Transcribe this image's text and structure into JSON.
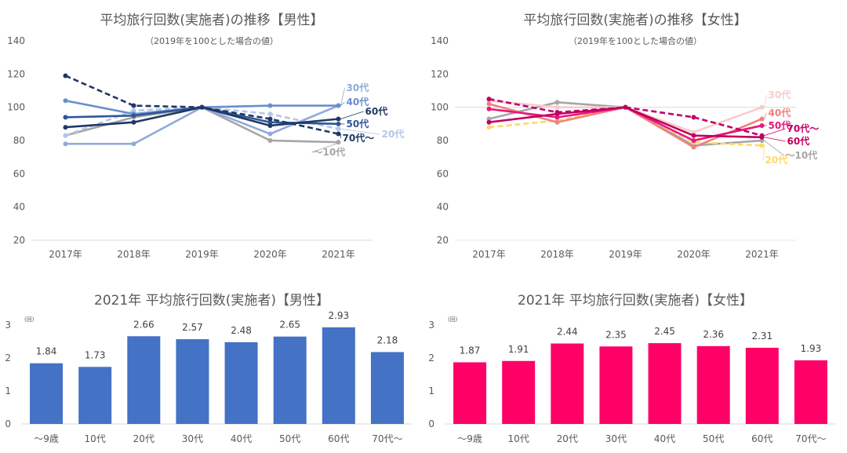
{
  "chart_data": [
    {
      "type": "line",
      "title": "平均旅行回数(実施者)の推移【男性】",
      "subtitle": "（2019年を100とした場合の値）",
      "categories": [
        "2017年",
        "2018年",
        "2019年",
        "2020年",
        "2021年"
      ],
      "ylim": [
        20,
        140
      ],
      "yticks": [
        20,
        40,
        60,
        80,
        100,
        120,
        140
      ],
      "grid": "baseline-only",
      "series": [
        {
          "name": "～10代",
          "values": [
            83,
            94,
            100,
            80,
            79
          ],
          "color": "#a6a6a6",
          "dashed": false
        },
        {
          "name": "20代",
          "values": [
            83,
            98,
            100,
            96,
            87
          ],
          "color": "#b4c7e7",
          "dashed": true
        },
        {
          "name": "30代",
          "values": [
            78,
            78,
            100,
            84,
            101
          ],
          "color": "#8faadc",
          "dashed": false
        },
        {
          "name": "40代",
          "values": [
            104,
            96,
            100,
            101,
            101
          ],
          "color": "#698ed0",
          "dashed": false
        },
        {
          "name": "50代",
          "values": [
            94,
            95,
            100,
            91,
            90
          ],
          "color": "#2f5597",
          "dashed": false
        },
        {
          "name": "60代",
          "values": [
            88,
            91,
            100,
            89,
            93
          ],
          "color": "#203864",
          "dashed": false
        },
        {
          "name": "70代～",
          "values": [
            119,
            101,
            100,
            93,
            84
          ],
          "color": "#1f3864",
          "dashed": true
        }
      ]
    },
    {
      "type": "line",
      "title": "平均旅行回数(実施者)の推移【女性】",
      "subtitle": "（2019年を100とした場合の値）",
      "categories": [
        "2017年",
        "2018年",
        "2019年",
        "2020年",
        "2021年"
      ],
      "ylim": [
        20,
        140
      ],
      "yticks": [
        20,
        40,
        60,
        80,
        100,
        120,
        140
      ],
      "grid": "100-line",
      "series": [
        {
          "name": "～10代",
          "values": [
            93,
            103,
            100,
            77,
            80
          ],
          "color": "#a6a6a6",
          "dashed": false
        },
        {
          "name": "20代",
          "values": [
            88,
            92,
            100,
            79,
            77
          ],
          "color": "#ffd966",
          "dashed": true
        },
        {
          "name": "30代",
          "values": [
            104,
            100,
            100,
            85,
            100
          ],
          "color": "#f8cbcb",
          "dashed": false
        },
        {
          "name": "40代",
          "values": [
            102,
            91,
            100,
            76,
            93
          ],
          "color": "#f08080",
          "dashed": false
        },
        {
          "name": "50代",
          "values": [
            99,
            94,
            100,
            80,
            89
          ],
          "color": "#e8177d",
          "dashed": false
        },
        {
          "name": "60代",
          "values": [
            91,
            96,
            100,
            83,
            82
          ],
          "color": "#c00060",
          "dashed": false
        },
        {
          "name": "70代～",
          "values": [
            105,
            97,
            100,
            94,
            83
          ],
          "color": "#c0006a",
          "dashed": true
        }
      ]
    },
    {
      "type": "bar",
      "title": "2021年 平均旅行回数(実施者)【男性】",
      "unit": "(回)",
      "categories": [
        "～9歳",
        "10代",
        "20代",
        "30代",
        "40代",
        "50代",
        "60代",
        "70代～"
      ],
      "values": [
        1.84,
        1.73,
        2.66,
        2.57,
        2.48,
        2.65,
        2.93,
        2.18
      ],
      "ylim": [
        0,
        3
      ],
      "yticks": [
        0,
        1,
        2,
        3
      ],
      "color": "#4472c4"
    },
    {
      "type": "bar",
      "title": "2021年 平均旅行回数(実施者)【女性】",
      "unit": "(回)",
      "categories": [
        "～9歳",
        "10代",
        "20代",
        "30代",
        "40代",
        "50代",
        "60代",
        "70代～"
      ],
      "values": [
        1.87,
        1.91,
        2.44,
        2.35,
        2.45,
        2.36,
        2.31,
        1.93
      ],
      "ylim": [
        0,
        3
      ],
      "yticks": [
        0,
        1,
        2,
        3
      ],
      "color": "#ff0066"
    }
  ]
}
